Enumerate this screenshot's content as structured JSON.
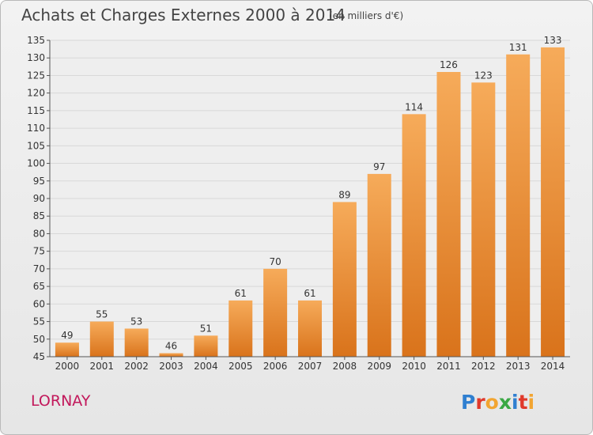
{
  "header": {
    "title": "Achats et Charges Externes 2000 à 2014",
    "unit": "(en milliers d'€)"
  },
  "footer": {
    "commune": "LORNAY",
    "brand": "Proxiti"
  },
  "colors": {
    "bar": "#f0912f",
    "bar_highlight": "#f6ab5a",
    "commune_text": "#c2185b",
    "gridline": "#d8d8d8",
    "axis": "#555555"
  },
  "chart_data": {
    "type": "bar",
    "title": "Achats et Charges Externes 2000 à 2014",
    "subtitle": "(en milliers d'€)",
    "xlabel": "",
    "ylabel": "",
    "categories": [
      "2000",
      "2001",
      "2002",
      "2003",
      "2004",
      "2005",
      "2006",
      "2007",
      "2008",
      "2009",
      "2010",
      "2011",
      "2012",
      "2013",
      "2014"
    ],
    "values": [
      49,
      55,
      53,
      46,
      51,
      61,
      70,
      61,
      89,
      97,
      114,
      126,
      123,
      131,
      133
    ],
    "ylim": [
      45,
      135
    ],
    "yticks": [
      45,
      50,
      55,
      60,
      65,
      70,
      75,
      80,
      85,
      90,
      95,
      100,
      105,
      110,
      115,
      120,
      125,
      130,
      135
    ],
    "grid": true,
    "data_labels": true
  }
}
